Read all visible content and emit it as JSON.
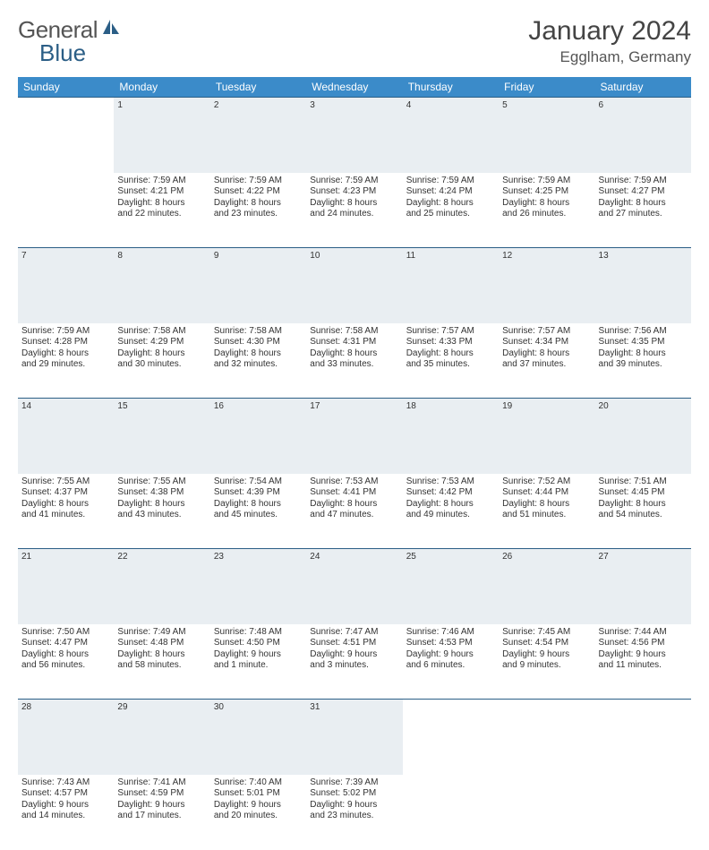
{
  "brand": {
    "name_a": "General",
    "name_b": "Blue",
    "logo_fill": "#2b5e86"
  },
  "title": "January 2024",
  "location": "Egglham, Germany",
  "colors": {
    "header_bg": "#3b8bc9",
    "daynum_bg": "#e9eef2",
    "rule": "#2b5e86"
  },
  "daynames": [
    "Sunday",
    "Monday",
    "Tuesday",
    "Wednesday",
    "Thursday",
    "Friday",
    "Saturday"
  ],
  "weeks": [
    {
      "nums": [
        "",
        "1",
        "2",
        "3",
        "4",
        "5",
        "6"
      ],
      "cells": [
        [],
        [
          "Sunrise: 7:59 AM",
          "Sunset: 4:21 PM",
          "Daylight: 8 hours",
          "and 22 minutes."
        ],
        [
          "Sunrise: 7:59 AM",
          "Sunset: 4:22 PM",
          "Daylight: 8 hours",
          "and 23 minutes."
        ],
        [
          "Sunrise: 7:59 AM",
          "Sunset: 4:23 PM",
          "Daylight: 8 hours",
          "and 24 minutes."
        ],
        [
          "Sunrise: 7:59 AM",
          "Sunset: 4:24 PM",
          "Daylight: 8 hours",
          "and 25 minutes."
        ],
        [
          "Sunrise: 7:59 AM",
          "Sunset: 4:25 PM",
          "Daylight: 8 hours",
          "and 26 minutes."
        ],
        [
          "Sunrise: 7:59 AM",
          "Sunset: 4:27 PM",
          "Daylight: 8 hours",
          "and 27 minutes."
        ]
      ]
    },
    {
      "nums": [
        "7",
        "8",
        "9",
        "10",
        "11",
        "12",
        "13"
      ],
      "cells": [
        [
          "Sunrise: 7:59 AM",
          "Sunset: 4:28 PM",
          "Daylight: 8 hours",
          "and 29 minutes."
        ],
        [
          "Sunrise: 7:58 AM",
          "Sunset: 4:29 PM",
          "Daylight: 8 hours",
          "and 30 minutes."
        ],
        [
          "Sunrise: 7:58 AM",
          "Sunset: 4:30 PM",
          "Daylight: 8 hours",
          "and 32 minutes."
        ],
        [
          "Sunrise: 7:58 AM",
          "Sunset: 4:31 PM",
          "Daylight: 8 hours",
          "and 33 minutes."
        ],
        [
          "Sunrise: 7:57 AM",
          "Sunset: 4:33 PM",
          "Daylight: 8 hours",
          "and 35 minutes."
        ],
        [
          "Sunrise: 7:57 AM",
          "Sunset: 4:34 PM",
          "Daylight: 8 hours",
          "and 37 minutes."
        ],
        [
          "Sunrise: 7:56 AM",
          "Sunset: 4:35 PM",
          "Daylight: 8 hours",
          "and 39 minutes."
        ]
      ]
    },
    {
      "nums": [
        "14",
        "15",
        "16",
        "17",
        "18",
        "19",
        "20"
      ],
      "cells": [
        [
          "Sunrise: 7:55 AM",
          "Sunset: 4:37 PM",
          "Daylight: 8 hours",
          "and 41 minutes."
        ],
        [
          "Sunrise: 7:55 AM",
          "Sunset: 4:38 PM",
          "Daylight: 8 hours",
          "and 43 minutes."
        ],
        [
          "Sunrise: 7:54 AM",
          "Sunset: 4:39 PM",
          "Daylight: 8 hours",
          "and 45 minutes."
        ],
        [
          "Sunrise: 7:53 AM",
          "Sunset: 4:41 PM",
          "Daylight: 8 hours",
          "and 47 minutes."
        ],
        [
          "Sunrise: 7:53 AM",
          "Sunset: 4:42 PM",
          "Daylight: 8 hours",
          "and 49 minutes."
        ],
        [
          "Sunrise: 7:52 AM",
          "Sunset: 4:44 PM",
          "Daylight: 8 hours",
          "and 51 minutes."
        ],
        [
          "Sunrise: 7:51 AM",
          "Sunset: 4:45 PM",
          "Daylight: 8 hours",
          "and 54 minutes."
        ]
      ]
    },
    {
      "nums": [
        "21",
        "22",
        "23",
        "24",
        "25",
        "26",
        "27"
      ],
      "cells": [
        [
          "Sunrise: 7:50 AM",
          "Sunset: 4:47 PM",
          "Daylight: 8 hours",
          "and 56 minutes."
        ],
        [
          "Sunrise: 7:49 AM",
          "Sunset: 4:48 PM",
          "Daylight: 8 hours",
          "and 58 minutes."
        ],
        [
          "Sunrise: 7:48 AM",
          "Sunset: 4:50 PM",
          "Daylight: 9 hours",
          "and 1 minute."
        ],
        [
          "Sunrise: 7:47 AM",
          "Sunset: 4:51 PM",
          "Daylight: 9 hours",
          "and 3 minutes."
        ],
        [
          "Sunrise: 7:46 AM",
          "Sunset: 4:53 PM",
          "Daylight: 9 hours",
          "and 6 minutes."
        ],
        [
          "Sunrise: 7:45 AM",
          "Sunset: 4:54 PM",
          "Daylight: 9 hours",
          "and 9 minutes."
        ],
        [
          "Sunrise: 7:44 AM",
          "Sunset: 4:56 PM",
          "Daylight: 9 hours",
          "and 11 minutes."
        ]
      ]
    },
    {
      "nums": [
        "28",
        "29",
        "30",
        "31",
        "",
        "",
        ""
      ],
      "cells": [
        [
          "Sunrise: 7:43 AM",
          "Sunset: 4:57 PM",
          "Daylight: 9 hours",
          "and 14 minutes."
        ],
        [
          "Sunrise: 7:41 AM",
          "Sunset: 4:59 PM",
          "Daylight: 9 hours",
          "and 17 minutes."
        ],
        [
          "Sunrise: 7:40 AM",
          "Sunset: 5:01 PM",
          "Daylight: 9 hours",
          "and 20 minutes."
        ],
        [
          "Sunrise: 7:39 AM",
          "Sunset: 5:02 PM",
          "Daylight: 9 hours",
          "and 23 minutes."
        ],
        [],
        [],
        []
      ]
    }
  ]
}
